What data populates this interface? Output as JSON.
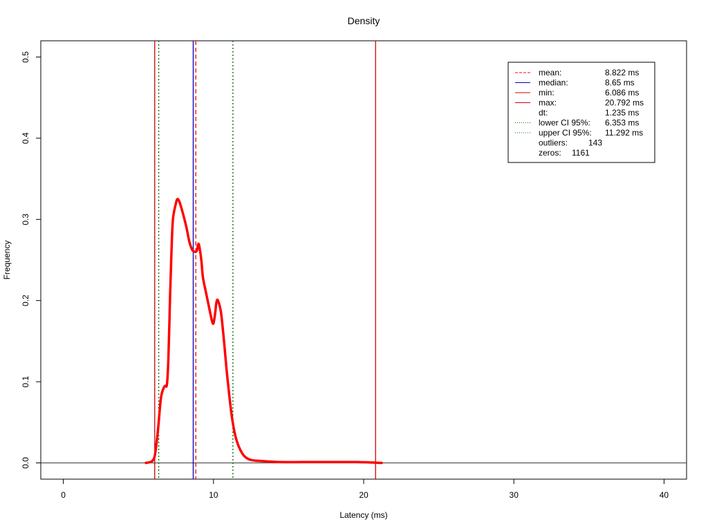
{
  "chart_data": {
    "type": "line",
    "title": "Density",
    "xlabel": "Latency (ms)",
    "ylabel": "Frequency",
    "xlim": [
      -1.5,
      41.5
    ],
    "ylim": [
      -0.02,
      0.52
    ],
    "x_ticks": [
      "0",
      "10",
      "20",
      "30",
      "40"
    ],
    "y_ticks": [
      "0.0",
      "0.1",
      "0.2",
      "0.3",
      "0.4",
      "0.5"
    ],
    "grid": false,
    "legend_position": "top-right",
    "series": [
      {
        "color": "#ff0000",
        "x": [
          5.5,
          5.9,
          6.1,
          6.3,
          6.5,
          6.7,
          6.8,
          6.9,
          7.0,
          7.1,
          7.2,
          7.3,
          7.5,
          7.6,
          7.7,
          7.8,
          8.0,
          8.2,
          8.4,
          8.6,
          8.8,
          8.9,
          9.0,
          9.1,
          9.2,
          9.3,
          9.5,
          9.7,
          9.9,
          10.0,
          10.1,
          10.2,
          10.3,
          10.5,
          10.7,
          10.9,
          11.2,
          11.5,
          11.9,
          12.3,
          12.7,
          13.5,
          14.5,
          16,
          18,
          19.5,
          21.2
        ],
        "y": [
          0.0,
          0.002,
          0.01,
          0.04,
          0.08,
          0.093,
          0.095,
          0.097,
          0.13,
          0.2,
          0.26,
          0.3,
          0.32,
          0.325,
          0.323,
          0.318,
          0.305,
          0.29,
          0.272,
          0.262,
          0.26,
          0.262,
          0.27,
          0.262,
          0.248,
          0.228,
          0.21,
          0.192,
          0.175,
          0.172,
          0.183,
          0.198,
          0.2,
          0.185,
          0.15,
          0.11,
          0.06,
          0.03,
          0.012,
          0.005,
          0.003,
          0.002,
          0.001,
          0.001,
          0.001,
          0.001,
          0.0
        ]
      }
    ],
    "vlines": [
      {
        "name": "mean",
        "x": 8.822,
        "color": "#ff0000",
        "style": "dashed"
      },
      {
        "name": "median",
        "x": 8.65,
        "color": "#0000b0",
        "style": "solid"
      },
      {
        "name": "min",
        "x": 6.086,
        "color": "#cc0000",
        "style": "solid"
      },
      {
        "name": "max",
        "x": 20.792,
        "color": "#cc0000",
        "style": "solid"
      },
      {
        "name": "lower-ci",
        "x": 6.353,
        "color": "#006400",
        "style": "dotted"
      },
      {
        "name": "upper-ci",
        "x": 11.292,
        "color": "#006400",
        "style": "dotted"
      }
    ],
    "hline": {
      "y": 0,
      "color": "#555555"
    },
    "legend": [
      {
        "label": "mean:",
        "value": "8.822 ms",
        "color": "#ff0000",
        "style": "dashed"
      },
      {
        "label": "median:",
        "value": "8.65 ms",
        "color": "#0000b0",
        "style": "solid"
      },
      {
        "label": "min:",
        "value": "6.086 ms",
        "color": "#cc0000",
        "style": "solid"
      },
      {
        "label": "max:",
        "value": "20.792 ms",
        "color": "#cc0000",
        "style": "solid"
      },
      {
        "label": "dt:",
        "value": "1.235 ms",
        "color": "",
        "style": "none"
      },
      {
        "label": "lower CI 95%:",
        "value": "6.353 ms",
        "color": "#006400",
        "style": "dotted"
      },
      {
        "label": "upper CI 95%:",
        "value": "11.292 ms",
        "color": "#006400",
        "style": "dotted"
      },
      {
        "label": "outliers:",
        "value": "143",
        "color": "",
        "style": "none"
      },
      {
        "label": "zeros:",
        "value": "1161",
        "color": "",
        "style": "none"
      }
    ]
  }
}
